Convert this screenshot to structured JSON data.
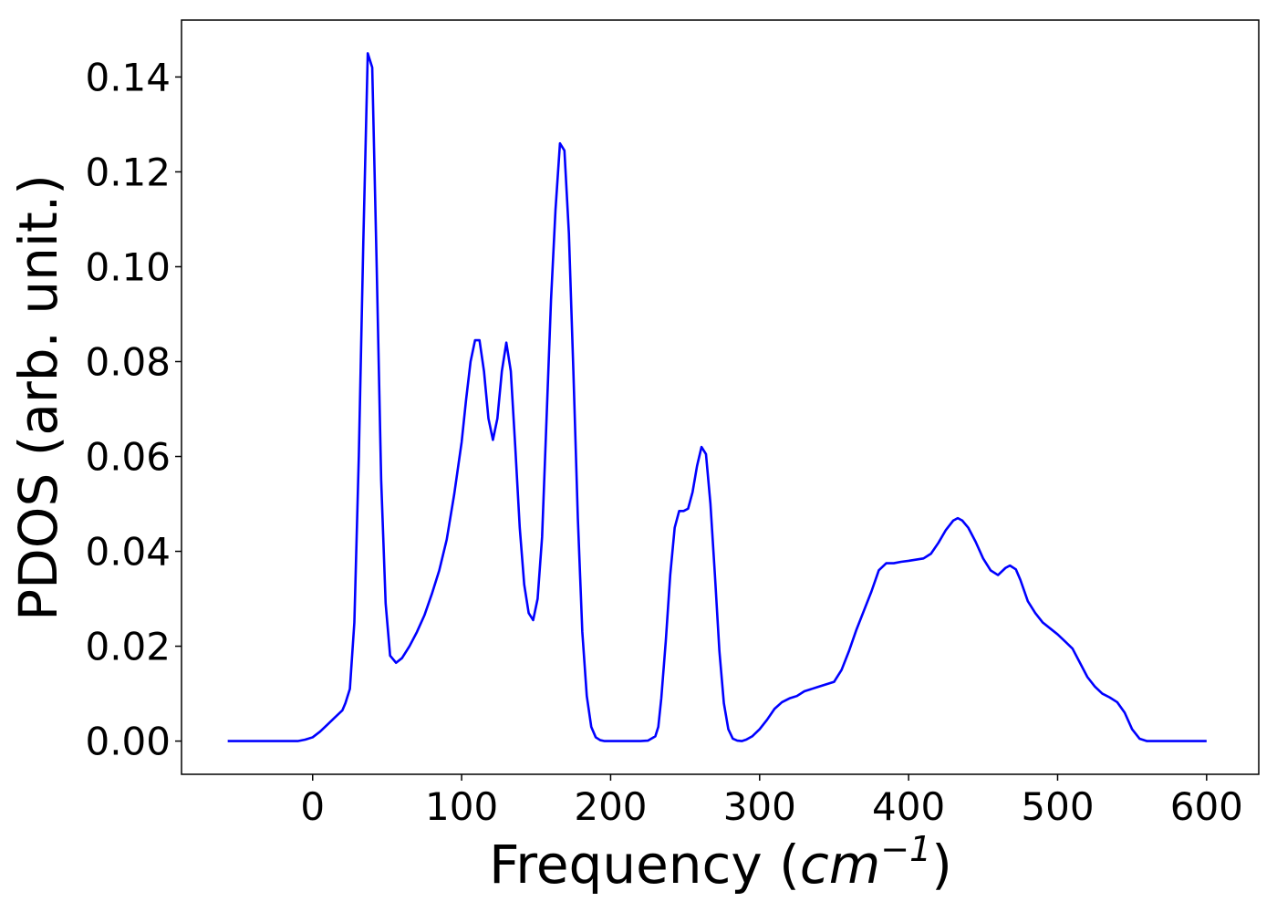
{
  "chart_data": {
    "type": "line",
    "title": "",
    "xlabel_prefix": "Frequency (",
    "xlabel_unit_base": "cm",
    "xlabel_unit_exp": "−1",
    "xlabel_suffix": ")",
    "ylabel": "PDOS (arb. unit.)",
    "xlim": [
      -88,
      635
    ],
    "ylim": [
      -0.007,
      0.152
    ],
    "xticks": [
      0,
      100,
      200,
      300,
      400,
      500,
      600
    ],
    "xtick_labels": [
      "0",
      "100",
      "200",
      "300",
      "400",
      "500",
      "600"
    ],
    "yticks": [
      0.0,
      0.02,
      0.04,
      0.06,
      0.08,
      0.1,
      0.12,
      0.14
    ],
    "ytick_labels": [
      "0.00",
      "0.02",
      "0.04",
      "0.06",
      "0.08",
      "0.10",
      "0.12",
      "0.14"
    ],
    "grid": false,
    "legend": false,
    "series": [
      {
        "color": "#0000ff",
        "x": [
          -57,
          -40,
          -20,
          -10,
          -5,
          0,
          5,
          10,
          15,
          20,
          22,
          25,
          28,
          31,
          34,
          37,
          40,
          43,
          46,
          49,
          52,
          56,
          60,
          65,
          70,
          75,
          80,
          85,
          90,
          95,
          100,
          103,
          106,
          109,
          112,
          115,
          118,
          121,
          124,
          127,
          130,
          133,
          136,
          139,
          142,
          145,
          148,
          151,
          154,
          157,
          160,
          163,
          166,
          169,
          172,
          175,
          178,
          181,
          184,
          187,
          190,
          193,
          196,
          200,
          205,
          210,
          215,
          220,
          225,
          230,
          232,
          234,
          237,
          240,
          243,
          246,
          249,
          252,
          255,
          258,
          261,
          264,
          267,
          270,
          273,
          276,
          279,
          282,
          285,
          288,
          291,
          295,
          300,
          305,
          310,
          315,
          320,
          325,
          330,
          340,
          350,
          355,
          360,
          365,
          370,
          375,
          380,
          385,
          390,
          395,
          400,
          410,
          415,
          420,
          425,
          430,
          433,
          436,
          440,
          445,
          450,
          455,
          460,
          465,
          468,
          472,
          475,
          480,
          485,
          490,
          500,
          505,
          510,
          515,
          520,
          525,
          530,
          535,
          540,
          545,
          550,
          555,
          560,
          570,
          580,
          590,
          600
        ],
        "y": [
          0.0,
          0.0,
          0.0,
          0.0,
          0.0003,
          0.0008,
          0.002,
          0.0035,
          0.005,
          0.0065,
          0.008,
          0.011,
          0.025,
          0.06,
          0.105,
          0.145,
          0.142,
          0.1,
          0.055,
          0.029,
          0.018,
          0.0165,
          0.0175,
          0.02,
          0.023,
          0.0265,
          0.031,
          0.036,
          0.0425,
          0.052,
          0.063,
          0.072,
          0.08,
          0.0845,
          0.0845,
          0.078,
          0.068,
          0.0635,
          0.068,
          0.078,
          0.084,
          0.078,
          0.062,
          0.045,
          0.033,
          0.027,
          0.0255,
          0.03,
          0.043,
          0.068,
          0.093,
          0.112,
          0.126,
          0.1245,
          0.107,
          0.078,
          0.047,
          0.023,
          0.0095,
          0.003,
          0.0008,
          0.0002,
          0.0,
          0.0,
          0.0,
          0.0,
          0.0,
          0.0,
          0.0001,
          0.001,
          0.003,
          0.009,
          0.021,
          0.035,
          0.045,
          0.0485,
          0.0485,
          0.049,
          0.0525,
          0.058,
          0.062,
          0.0605,
          0.05,
          0.035,
          0.019,
          0.008,
          0.0025,
          0.0005,
          0.0001,
          0.0,
          0.0003,
          0.001,
          0.0025,
          0.0045,
          0.0068,
          0.0082,
          0.009,
          0.0095,
          0.0105,
          0.0115,
          0.0125,
          0.015,
          0.019,
          0.0235,
          0.0275,
          0.0315,
          0.036,
          0.0375,
          0.0375,
          0.0378,
          0.038,
          0.0385,
          0.0395,
          0.0418,
          0.0445,
          0.0465,
          0.047,
          0.0465,
          0.045,
          0.042,
          0.0385,
          0.036,
          0.035,
          0.0365,
          0.037,
          0.0362,
          0.034,
          0.0295,
          0.027,
          0.025,
          0.0225,
          0.021,
          0.0195,
          0.0165,
          0.0135,
          0.0115,
          0.01,
          0.0092,
          0.0082,
          0.006,
          0.0025,
          0.0005,
          0.0,
          0.0,
          0.0,
          0.0,
          0.0
        ]
      }
    ]
  }
}
